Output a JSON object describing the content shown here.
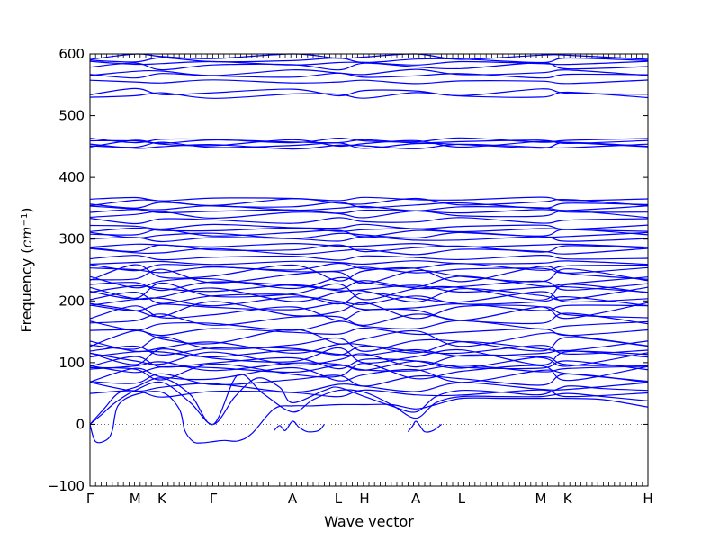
{
  "chart_data": {
    "type": "line",
    "title": "",
    "xlabel": "Wave vector",
    "ylabel_main": "Frequency ",
    "ylabel_unit": "cm",
    "ylabel_exp": "−1",
    "ylim": [
      -100,
      600
    ],
    "yticks": [
      -100,
      0,
      100,
      200,
      300,
      400,
      500,
      600
    ],
    "high_symmetry_points": [
      {
        "label": "Γ",
        "q": 0.0
      },
      {
        "label": "M",
        "q": 0.081
      },
      {
        "label": "K",
        "q": 0.129
      },
      {
        "label": "Γ",
        "q": 0.221
      },
      {
        "label": "A",
        "q": 0.363
      },
      {
        "label": "L",
        "q": 0.445
      },
      {
        "label": "H",
        "q": 0.492
      },
      {
        "label": "A",
        "q": 0.584
      },
      {
        "label": "L",
        "q": 0.666
      },
      {
        "label": "M",
        "q": 0.808
      },
      {
        "label": "K",
        "q": 0.856
      },
      {
        "label": "H",
        "q": 1.0
      }
    ],
    "zero_line": {
      "y": 0,
      "style": "dotted"
    },
    "color": "#0000ff",
    "grid": false,
    "acoustic_bands": [
      {
        "points": [
          [
            0.0,
            0
          ],
          [
            0.02,
            15
          ],
          [
            0.045,
            35
          ],
          [
            0.081,
            55
          ],
          [
            0.129,
            68
          ],
          [
            0.18,
            35
          ],
          [
            0.221,
            0
          ],
          [
            0.26,
            45
          ],
          [
            0.3,
            75
          ],
          [
            0.34,
            60
          ],
          [
            0.363,
            35
          ],
          [
            0.42,
            55
          ],
          [
            0.445,
            60
          ],
          [
            0.492,
            45
          ],
          [
            0.54,
            30
          ],
          [
            0.584,
            20
          ],
          [
            0.62,
            45
          ],
          [
            0.666,
            55
          ],
          [
            0.74,
            52
          ],
          [
            0.808,
            48
          ],
          [
            0.856,
            62
          ],
          [
            0.92,
            58
          ],
          [
            1.0,
            55
          ]
        ]
      },
      {
        "points": [
          [
            0.0,
            0
          ],
          [
            0.025,
            25
          ],
          [
            0.05,
            50
          ],
          [
            0.081,
            60
          ],
          [
            0.129,
            75
          ],
          [
            0.18,
            48
          ],
          [
            0.221,
            0
          ],
          [
            0.265,
            80
          ],
          [
            0.31,
            50
          ],
          [
            0.363,
            20
          ],
          [
            0.4,
            40
          ],
          [
            0.445,
            55
          ],
          [
            0.492,
            52
          ],
          [
            0.54,
            32
          ],
          [
            0.584,
            10
          ],
          [
            0.62,
            35
          ],
          [
            0.666,
            45
          ],
          [
            0.74,
            45
          ],
          [
            0.808,
            45
          ],
          [
            0.856,
            50
          ],
          [
            0.92,
            45
          ],
          [
            1.0,
            38
          ]
        ]
      },
      {
        "points": [
          [
            0.0,
            0
          ],
          [
            0.01,
            -28
          ],
          [
            0.03,
            -25
          ],
          [
            0.04,
            -10
          ],
          [
            0.05,
            30
          ],
          [
            0.081,
            48
          ],
          [
            0.129,
            52
          ],
          [
            0.16,
            25
          ],
          [
            0.17,
            -10
          ],
          [
            0.185,
            -28
          ],
          [
            0.2,
            -30
          ],
          [
            0.221,
            -28
          ],
          [
            0.24,
            -26
          ],
          [
            0.265,
            -27
          ],
          [
            0.29,
            -15
          ],
          [
            0.33,
            25
          ],
          [
            0.363,
            30
          ],
          [
            0.4,
            30
          ],
          [
            0.445,
            32
          ],
          [
            0.492,
            32
          ],
          [
            0.54,
            32
          ],
          [
            0.584,
            25
          ],
          [
            0.62,
            32
          ],
          [
            0.666,
            42
          ],
          [
            0.74,
            42
          ],
          [
            0.808,
            42
          ],
          [
            0.856,
            42
          ],
          [
            0.92,
            40
          ],
          [
            1.0,
            28
          ]
        ]
      },
      {
        "points": [
          [
            0.33,
            -10
          ],
          [
            0.34,
            -2
          ],
          [
            0.35,
            -10
          ],
          [
            0.363,
            5
          ],
          [
            0.375,
            -5
          ],
          [
            0.39,
            -12
          ],
          [
            0.41,
            -10
          ],
          [
            0.42,
            0
          ]
        ]
      },
      {
        "points": [
          [
            0.57,
            -12
          ],
          [
            0.578,
            -3
          ],
          [
            0.584,
            5
          ],
          [
            0.592,
            -3
          ],
          [
            0.6,
            -12
          ],
          [
            0.615,
            -10
          ],
          [
            0.63,
            0
          ]
        ]
      }
    ],
    "optical_band_levels": [
      50,
      60,
      72,
      80,
      85,
      90,
      95,
      100,
      105,
      110,
      115,
      120,
      125,
      130,
      140,
      150,
      160,
      170,
      180,
      185,
      190,
      200,
      205,
      210,
      215,
      220,
      225,
      230,
      240,
      245,
      250,
      255,
      262,
      270,
      280,
      285,
      290,
      300,
      306,
      310,
      315,
      320,
      330,
      340,
      345,
      350,
      355,
      360,
      365,
      450,
      452,
      455,
      458,
      460,
      533,
      538,
      555,
      565,
      570,
      580,
      585,
      590,
      596
    ]
  }
}
